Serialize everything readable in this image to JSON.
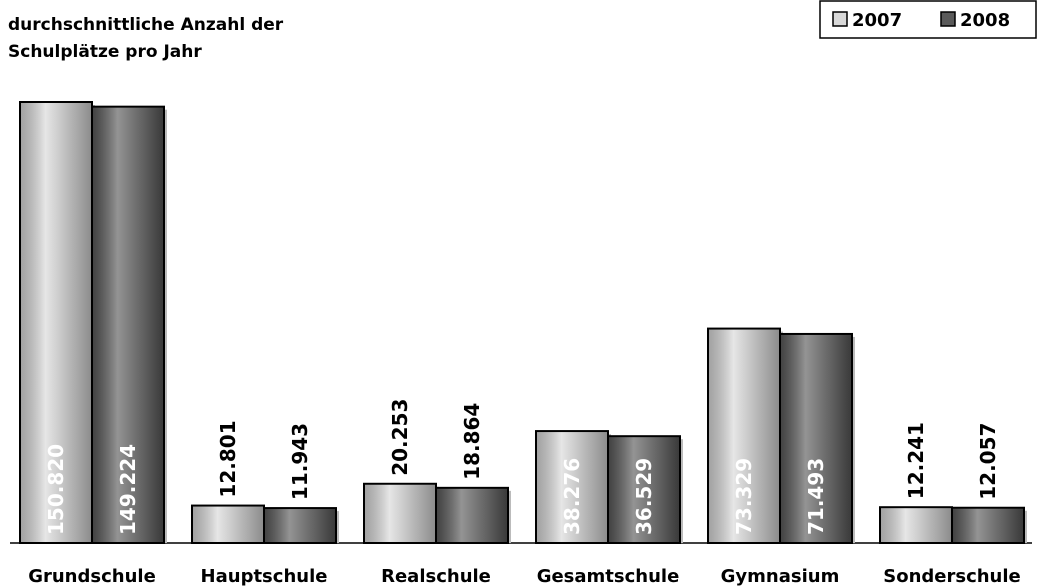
{
  "chart_data": {
    "type": "bar",
    "title": "durchschnittliche Anzahl der Schulplätze pro Jahr",
    "title_lines": [
      "durchschnittliche Anzahl der",
      "Schulplätze pro Jahr"
    ],
    "categories": [
      "Grundschule",
      "Hauptschule",
      "Realschule",
      "Gesamtschule",
      "Gymnasium",
      "Sonderschule"
    ],
    "series": [
      {
        "name": "2007",
        "color": "#d9d9d9",
        "values": [
          150820,
          12801,
          20253,
          38276,
          73329,
          12241
        ],
        "value_labels": [
          "150.820",
          "12.801",
          "20.253",
          "38.276",
          "73.329",
          "12.241"
        ]
      },
      {
        "name": "2008",
        "color": "#5a5a5a",
        "values": [
          149224,
          11943,
          18864,
          36529,
          71493,
          12057
        ],
        "value_labels": [
          "149.224",
          "11.943",
          "18.864",
          "36.529",
          "71.493",
          "12.057"
        ]
      }
    ],
    "legend": "top-right"
  }
}
